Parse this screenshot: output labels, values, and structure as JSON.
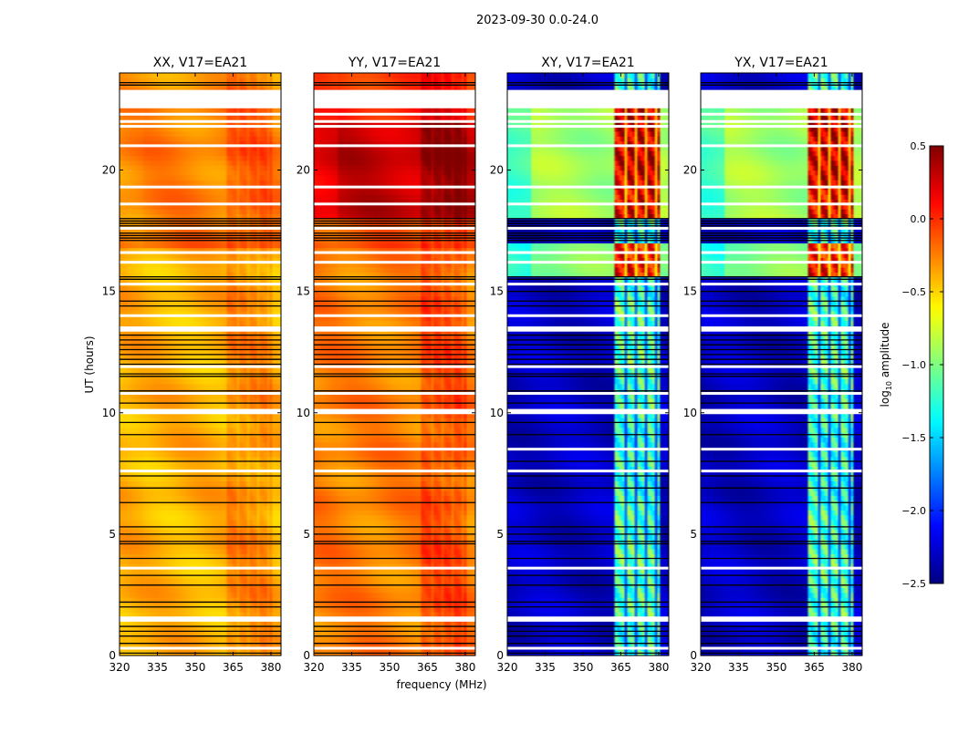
{
  "chart_data": {
    "type": "heatmap",
    "title": "2023-09-30 0.0-24.0",
    "xlabel": "frequency (MHz)",
    "ylabel": "UT (hours)",
    "xlim": [
      320,
      384
    ],
    "ylim": [
      0,
      24
    ],
    "xticks": [
      320,
      335,
      350,
      365,
      380
    ],
    "yticks": [
      0,
      5,
      10,
      15,
      20
    ],
    "colorbar": {
      "label_main": "log",
      "label_sub": "10",
      "label_tail": " amplitude",
      "colormap": "jet",
      "range": [
        -2.5,
        0.5
      ],
      "ticks": [
        0.5,
        0.0,
        -0.5,
        -1.0,
        -1.5,
        -2.0,
        -2.5
      ],
      "tick_labels": [
        "0.5",
        "0.0",
        "−0.5",
        "−1.0",
        "−1.5",
        "−2.0",
        "−2.5"
      ]
    },
    "rfi_bands_mhz": [
      [
        362.5,
        366.5
      ],
      [
        367.5,
        370.5
      ],
      [
        371.5,
        374.5
      ],
      [
        375.5,
        378.5
      ],
      [
        379.5,
        380.5
      ]
    ],
    "panels": [
      {
        "title": "XX, V17=EA21",
        "segments": [
          [
            0,
            16.7,
            -0.4
          ],
          [
            16.7,
            18.0,
            -0.2
          ],
          [
            18.0,
            22.5,
            -0.25
          ],
          [
            22.5,
            24,
            -0.3
          ]
        ],
        "rfi_boost": 0.15,
        "edge_low": -0.35
      },
      {
        "title": "YY, V17=EA21",
        "segments": [
          [
            0,
            16.7,
            -0.25
          ],
          [
            16.7,
            18.0,
            -0.1
          ],
          [
            18.0,
            22.0,
            0.3
          ],
          [
            22.0,
            24,
            0.0
          ]
        ],
        "rfi_boost": 0.2,
        "edge_low": -0.2
      },
      {
        "title": "XY, V17=EA21",
        "segments": [
          [
            0,
            15.5,
            -2.3
          ],
          [
            15.5,
            17.0,
            -1.0
          ],
          [
            17.0,
            18.0,
            -2.3
          ],
          [
            18.0,
            22.5,
            -0.9
          ],
          [
            22.5,
            24,
            -2.3
          ]
        ],
        "rfi_boost": 1.4,
        "edge_low": -2.3
      },
      {
        "title": "YX, V17=EA21",
        "segments": [
          [
            0,
            15.5,
            -2.3
          ],
          [
            15.5,
            17.0,
            -1.0
          ],
          [
            17.0,
            18.0,
            -2.3
          ],
          [
            18.0,
            22.5,
            -0.9
          ],
          [
            22.5,
            24,
            -2.3
          ]
        ],
        "rfi_boost": 1.4,
        "edge_low": -2.3
      }
    ],
    "flagged_rows_ut": [
      0.3,
      1.45,
      1.55,
      3.6,
      7.6,
      8.5,
      10.0,
      10.1,
      10.8,
      11.9,
      13.4,
      13.5,
      14.0,
      15.3,
      16.2,
      16.6,
      17.6,
      18.6,
      19.3,
      21.0,
      21.8,
      22.0,
      22.3,
      22.6,
      22.8,
      23.0,
      23.2
    ],
    "black_rows_ut": [
      0.1,
      0.5,
      0.8,
      1.0,
      1.2,
      2.0,
      2.2,
      2.9,
      3.3,
      4.0,
      4.6,
      4.7,
      5.0,
      5.3,
      6.3,
      6.9,
      7.4,
      8.0,
      9.1,
      9.6,
      10.4,
      10.9,
      11.5,
      11.6,
      12.0,
      12.2,
      12.4,
      12.6,
      12.8,
      13.0,
      13.2,
      14.4,
      14.6,
      15.0,
      15.5,
      15.6,
      17.1,
      17.2,
      17.3,
      17.4,
      17.7,
      17.8,
      17.9,
      18.0,
      23.5,
      23.6
    ]
  }
}
